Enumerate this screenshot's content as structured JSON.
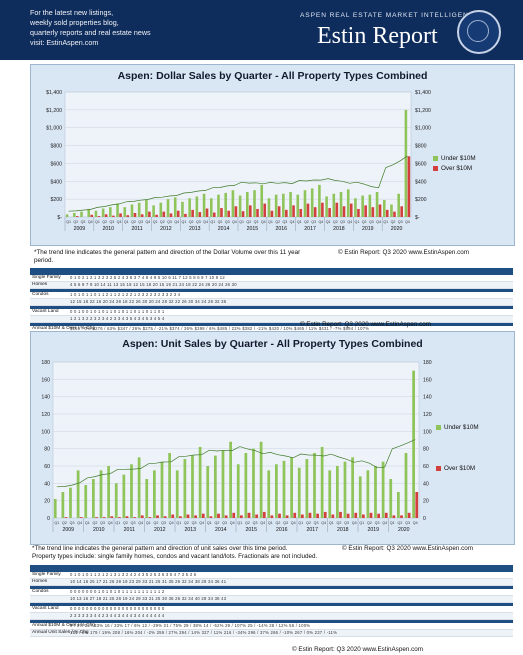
{
  "header": {
    "intro_lines": [
      "For the latest new listings,",
      "weekly sold properties blog,",
      "quarterly reports and real estate news",
      "visit: EstinAspen.com"
    ],
    "tagline": "ASPEN REAL ESTATE MARKET INTELLIGENCE",
    "brand": "Estin Report"
  },
  "chart_data": [
    {
      "type": "bar",
      "title": "Aspen:  Dollar Sales by Quarter  -  All Property Types Combined",
      "years": [
        "2009",
        "2010",
        "2011",
        "2012",
        "2013",
        "2014",
        "2015",
        "2016",
        "2017",
        "2018",
        "2019",
        "2020"
      ],
      "quarter_labels": [
        "Q1",
        "Q2",
        "Q3",
        "Q4"
      ],
      "ylim": [
        0,
        1400
      ],
      "yticks": [
        0,
        200,
        400,
        600,
        800,
        1000,
        1200,
        1400
      ],
      "ytick_labels": [
        "$-",
        "$200",
        "$400",
        "$600",
        "$800",
        "$1,000",
        "$1,200",
        "$1,400"
      ],
      "series": [
        {
          "name": "Under $10M",
          "color": "#8fc45a",
          "values": [
            30,
            45,
            60,
            90,
            70,
            95,
            110,
            150,
            110,
            140,
            160,
            190,
            130,
            160,
            200,
            220,
            170,
            210,
            230,
            260,
            210,
            250,
            270,
            300,
            240,
            280,
            300,
            360,
            210,
            250,
            260,
            280,
            250,
            300,
            320,
            360,
            230,
            260,
            280,
            310,
            210,
            240,
            250,
            280,
            190,
            140,
            260,
            1200
          ]
        },
        {
          "name": "Over $10M",
          "color": "#d2403d",
          "values": [
            0,
            10,
            0,
            25,
            10,
            30,
            15,
            40,
            20,
            45,
            30,
            60,
            25,
            60,
            40,
            70,
            35,
            80,
            55,
            95,
            50,
            100,
            70,
            120,
            65,
            130,
            90,
            150,
            70,
            120,
            80,
            130,
            90,
            150,
            110,
            160,
            100,
            160,
            120,
            150,
            90,
            130,
            110,
            140,
            80,
            60,
            120,
            680
          ]
        }
      ],
      "trend_label": "*The trend line indicates the general pattern and direction of the Dollar Volume over this 11 year period.",
      "source": "© Estin Report: Q3 2020 www.EstinAspen.com"
    },
    {
      "type": "bar",
      "title": "Aspen:  Unit Sales by Quarter  -  All Property Types Combined",
      "years": [
        "2009",
        "2010",
        "2011",
        "2012",
        "2013",
        "2014",
        "2015",
        "2016",
        "2017",
        "2018",
        "2019",
        "2020"
      ],
      "quarter_labels": [
        "Q1",
        "Q2",
        "Q3",
        "Q4"
      ],
      "ylim": [
        0,
        180
      ],
      "yticks": [
        0,
        20,
        40,
        60,
        80,
        100,
        120,
        140,
        160,
        180
      ],
      "ytick_labels": [
        "0",
        "20",
        "40",
        "60",
        "80",
        "100",
        "120",
        "140",
        "160",
        "180"
      ],
      "series": [
        {
          "name": "Under $10M",
          "color": "#8fc45a",
          "values": [
            22,
            30,
            35,
            55,
            38,
            45,
            55,
            60,
            40,
            50,
            62,
            70,
            45,
            55,
            65,
            75,
            55,
            68,
            72,
            82,
            60,
            72,
            78,
            88,
            62,
            75,
            80,
            88,
            55,
            62,
            66,
            70,
            58,
            68,
            75,
            82,
            55,
            60,
            65,
            70,
            48,
            55,
            60,
            65,
            45,
            30,
            75,
            170
          ]
        },
        {
          "name": "Over $10M",
          "color": "#d2403d",
          "values": [
            0,
            1,
            0,
            1,
            0,
            1,
            1,
            2,
            1,
            2,
            1,
            3,
            1,
            3,
            2,
            4,
            2,
            4,
            3,
            5,
            2,
            5,
            3,
            6,
            3,
            6,
            4,
            7,
            3,
            5,
            3,
            6,
            4,
            6,
            5,
            7,
            4,
            7,
            5,
            6,
            4,
            6,
            5,
            6,
            3,
            3,
            6,
            30
          ]
        }
      ],
      "trend_label": "*The trend line indicates the general pattern and direction of unit sales over this time period.",
      "note2": "Property types include: single family homes, condos and vacant land/lots. Fractionals are not included.",
      "source": "© Estin Report: Q3 2020 www.EstinAspen.com"
    }
  ],
  "table1": {
    "rows": [
      {
        "label": "Single Family",
        "vals": "0 1 0 2 1 2 1 3 2 3 2 5 2 4 3 6 3 7 4 8 4 9 5 10 6 11 7 12 5 8 6 9 7 10 8 12"
      },
      {
        "label": "Homes",
        "vals": "4 5 6 9 7 9 10 14 11 13 15 18 12 15 18 20 15 19 21 24 18 22 24 26 20 24 26 30"
      },
      {
        "label": "Condos",
        "vals": "1 0 1 0 1 1 0 1 1 2 1 1 2 1 2 2 1 2 3 2 2 3 2 3 3 2 3 4"
      },
      {
        "label": "",
        "vals": "12 15 18 22 16 20 24 28 18 22 26 30 20 24 28 32 22 26 30 34 24 28 32 36"
      },
      {
        "label": "Vacant Land",
        "vals": "0 0 1 0 0 1 0 1 0 1 1 0 1 0 1 1 0 1 1 0 1 1 0 1"
      },
      {
        "label": "",
        "vals": "1 2 1 3 2 2 3 2 3 4 2 3 3 4 3 5 4 3 4 5 3 4 5 4"
      },
      {
        "label": "Annual $10M & Over / % Chg",
        "vals": "$169 / 0%  $276 / 63%  $347 / 26%  $275 / -21%  $374 / 36%  $398 / 6%  $485 / 22%  $382 / -21%  $420 / 10%  $465 / 11%  $431 / -7%  $894 / 107%"
      },
      {
        "label": "Annual $ Volume / % Chg",
        "vals": "$380 / 0%  $676 / 78%  $796 / 18%  $901 / 13%  $781 / -13%  $1,087 / 39%  $1,356 / 25%  $960 / -29%  $1,297 / 35%  $1,244 / -4%  $1,116 / -10%  $1,667 / 49%"
      }
    ]
  },
  "table2": {
    "rows": [
      {
        "label": "Single Family",
        "vals": "0 1 0 1 0 1 1 2 1 2 1 3 1 3 2 4 2 4 3 5 2 5 3 6 3 6 4 7 3 5 3 6"
      },
      {
        "label": "Homes",
        "vals": "10 14 16 25 17 21 26 28 19 23 29 33 21 26 31 35 26 32 34 38 28 34 36 41"
      },
      {
        "label": "Condos",
        "vals": "0 0 0 0 0 0 0 1 0 1 0 1 0 1 1 1 1 1 1 1 1 1 1 2"
      },
      {
        "label": "",
        "vals": "10 13 16 27 18 21 25 28 19 24 29 33 21 25 30 36 26 32 34 40 28 34 38 43"
      },
      {
        "label": "Vacant Land",
        "vals": "0 0 0 0 0 0 0 0 0 0 0 0 0 0 0 0 0 0 0 0 0 0 0 0"
      },
      {
        "label": "",
        "vals": "2 3 3 3 3 3 4 4 2 3 4 4 3 4 4 4 3 4 4 4 4 4 4 4"
      },
      {
        "label": "Annual $10M & Over / % Chg",
        "vals": "9 / 0%  12 / 33%  16 / 33%  17 / 6%  12 / -29%  21 / 75%  29 / 38%  14 / -52%  29 / 107%  25 / -14%  28 / 12%  56 / 100%"
      },
      {
        "label": "Annual Unit Sales / % Chg",
        "vals": "151 / 0%  179 / 19%  208 / 16%  204 / -2%  259 / 27%  294 / 14%  327 / 11%  216 / -34%  296 / 37%  266 / -10%  267 / 0%  237 / -11%"
      }
    ]
  }
}
